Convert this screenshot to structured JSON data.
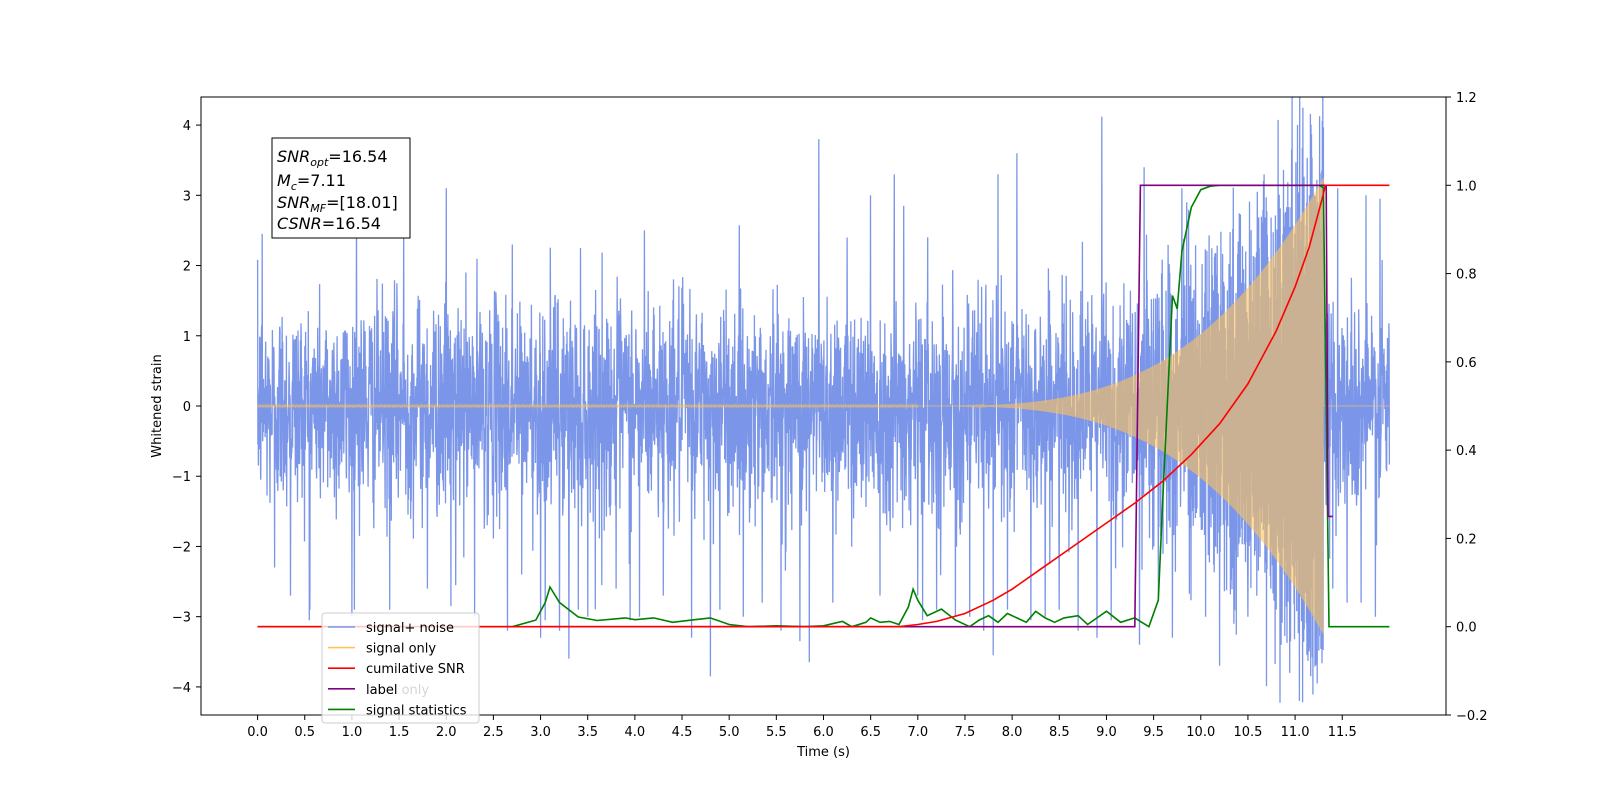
{
  "chart_data": {
    "type": "line",
    "xlabel": "Time (s)",
    "ylabel": "Whitened strain",
    "xlim": [
      -0.6,
      12.6
    ],
    "ylim": [
      -4.4,
      4.4
    ],
    "ylim_right": [
      -0.2,
      1.2
    ],
    "x_ticks": [
      0.0,
      0.5,
      1.0,
      1.5,
      2.0,
      2.5,
      3.0,
      3.5,
      4.0,
      4.5,
      5.0,
      5.5,
      6.0,
      6.5,
      7.0,
      7.5,
      8.0,
      8.5,
      9.0,
      9.5,
      10.0,
      10.5,
      11.0,
      11.5
    ],
    "x_tick_labels": [
      "0.0",
      "0.5",
      "1.0",
      "1.5",
      "2.0",
      "2.5",
      "3.0",
      "3.5",
      "4.0",
      "4.5",
      "5.0",
      "5.5",
      "6.0",
      "6.5",
      "7.0",
      "7.5",
      "8.0",
      "8.5",
      "9.0",
      "9.5",
      "10.0",
      "10.5",
      "11.0",
      "11.5"
    ],
    "y_ticks_left": [
      -4,
      -3,
      -2,
      -1,
      0,
      1,
      2,
      3,
      4
    ],
    "y_tick_labels_left": [
      "−4",
      "−3",
      "−2",
      "−1",
      "0",
      "1",
      "2",
      "3",
      "4"
    ],
    "y_ticks_right": [
      -0.2,
      0.0,
      0.2,
      0.4,
      0.6,
      0.8,
      1.0,
      1.2
    ],
    "y_tick_labels_right": [
      "−0.2",
      "0.0",
      "0.2",
      "0.4",
      "0.6",
      "0.8",
      "1.0",
      "1.2"
    ],
    "info_box": {
      "snr_opt": "SNR",
      "snr_opt_sub": "opt",
      "snr_opt_val": "=16.54",
      "mc": "M",
      "mc_sub": "c",
      "mc_val": "=7.11",
      "snr_mf": "SNR",
      "snr_mf_sub": "MF",
      "snr_mf_val": "=[18.01]",
      "csnr": "CSNR",
      "csnr_val": "=16.54"
    },
    "legend": {
      "placement": "lower-left",
      "entries": [
        {
          "label": "signal+ noise",
          "color": "#7b96e8"
        },
        {
          "label": "signal only",
          "color": "#ffc35a"
        },
        {
          "label": "cumilative SNR",
          "color": "#ff0000"
        },
        {
          "label": "label",
          "color": "#800080",
          "hidden_text": "label only"
        },
        {
          "label": "signal statistics",
          "color": "#008000"
        }
      ]
    },
    "series": [
      {
        "name": "signal+ noise",
        "axis": "left",
        "color": "#7b96e8",
        "noise_sigma": 0.75,
        "t_start": 0.0,
        "t_end": 12.0,
        "spikes": [
          [
            0.05,
            2.45
          ],
          [
            0.18,
            -2.3
          ],
          [
            0.35,
            2.5
          ],
          [
            0.35,
            -2.7
          ],
          [
            0.55,
            -3.05
          ],
          [
            1.0,
            -3.0
          ],
          [
            1.05,
            3.0
          ],
          [
            1.4,
            -2.9
          ],
          [
            1.55,
            2.7
          ],
          [
            1.8,
            -2.6
          ],
          [
            2.0,
            3.1
          ],
          [
            2.05,
            -2.85
          ],
          [
            2.1,
            -2.55
          ],
          [
            2.3,
            -3.0
          ],
          [
            2.65,
            -3.2
          ],
          [
            2.7,
            2.3
          ],
          [
            2.8,
            -2.4
          ],
          [
            3.0,
            -3.3
          ],
          [
            3.05,
            -3.05
          ],
          [
            3.2,
            -3.2
          ],
          [
            3.3,
            -3.6
          ],
          [
            3.4,
            -2.9
          ],
          [
            3.5,
            -3.0
          ],
          [
            3.65,
            -2.55
          ],
          [
            3.8,
            -2.6
          ],
          [
            3.95,
            -3.05
          ],
          [
            4.05,
            -3.0
          ],
          [
            4.1,
            2.5
          ],
          [
            4.3,
            -2.7
          ],
          [
            4.6,
            -3.3
          ],
          [
            4.8,
            -3.85
          ],
          [
            4.9,
            -2.9
          ],
          [
            5.15,
            -3.0
          ],
          [
            5.35,
            -2.8
          ],
          [
            5.55,
            -3.2
          ],
          [
            5.75,
            -3.35
          ],
          [
            5.85,
            -3.65
          ],
          [
            5.95,
            3.8
          ],
          [
            6.1,
            -2.8
          ],
          [
            6.25,
            2.4
          ],
          [
            6.5,
            3.0
          ],
          [
            6.6,
            -2.7
          ],
          [
            6.75,
            3.3
          ],
          [
            6.85,
            2.85
          ],
          [
            7.0,
            -2.7
          ],
          [
            7.05,
            -3.05
          ],
          [
            7.2,
            -2.9
          ],
          [
            7.4,
            -3.0
          ],
          [
            7.55,
            -3.0
          ],
          [
            7.7,
            -3.2
          ],
          [
            7.8,
            -3.55
          ],
          [
            7.85,
            3.3
          ],
          [
            7.95,
            -2.9
          ],
          [
            8.05,
            3.6
          ],
          [
            8.2,
            -3.05
          ],
          [
            8.35,
            -3.0
          ],
          [
            8.5,
            -2.9
          ],
          [
            8.7,
            -3.2
          ],
          [
            8.9,
            -3.3
          ],
          [
            8.95,
            4.12
          ],
          [
            9.05,
            -3.05
          ],
          [
            9.35,
            -3.4
          ],
          [
            9.4,
            3.4
          ],
          [
            9.55,
            -2.7
          ],
          [
            9.7,
            -3.3
          ],
          [
            9.8,
            3.1
          ],
          [
            9.85,
            2.9
          ],
          [
            10.05,
            -3.0
          ],
          [
            10.2,
            -3.7
          ],
          [
            10.35,
            -3.1
          ],
          [
            10.5,
            -3.0
          ],
          [
            10.6,
            3.05
          ],
          [
            10.85,
            -3.4
          ],
          [
            10.95,
            -3.35
          ],
          [
            11.15,
            3.0
          ],
          [
            11.3,
            -3.6
          ],
          [
            11.3,
            3.97
          ],
          [
            11.4,
            -2.6
          ],
          [
            11.45,
            3.1
          ],
          [
            11.55,
            -2.8
          ],
          [
            11.7,
            -2.8
          ],
          [
            11.75,
            3.0
          ],
          [
            11.85,
            -3.0
          ],
          [
            11.9,
            2.95
          ]
        ]
      },
      {
        "name": "signal only",
        "axis": "left",
        "color": "#ffc35a",
        "chirp_start": 7.0,
        "chirp_end": 11.3,
        "chirp_peak": 3.25,
        "merger": 11.3
      },
      {
        "name": "cumilative SNR",
        "axis": "right",
        "color": "#ff0000",
        "x": [
          0.0,
          6.8,
          7.0,
          7.2,
          7.5,
          7.8,
          8.0,
          8.3,
          8.6,
          9.0,
          9.3,
          9.6,
          9.9,
          10.2,
          10.5,
          10.8,
          11.0,
          11.15,
          11.3,
          11.32,
          12.0
        ],
        "y": [
          0.0,
          0.0,
          0.005,
          0.012,
          0.03,
          0.06,
          0.085,
          0.13,
          0.175,
          0.235,
          0.28,
          0.33,
          0.39,
          0.46,
          0.55,
          0.67,
          0.77,
          0.86,
          0.98,
          1.0,
          1.0
        ]
      },
      {
        "name": "label",
        "axis": "right",
        "color": "#800080",
        "x": [
          3.0,
          9.3,
          9.36,
          11.33,
          11.35,
          11.4
        ],
        "y": [
          0.0,
          0.0,
          1.0,
          1.0,
          0.25,
          0.25
        ]
      },
      {
        "name": "signal statistics",
        "axis": "right",
        "color": "#008000",
        "x": [
          0.0,
          2.7,
          2.95,
          3.05,
          3.1,
          3.2,
          3.4,
          3.6,
          3.8,
          3.9,
          4.0,
          4.2,
          4.4,
          4.6,
          4.8,
          5.0,
          5.2,
          5.5,
          5.8,
          6.0,
          6.2,
          6.3,
          6.45,
          6.5,
          6.6,
          6.7,
          6.8,
          6.9,
          6.95,
          7.0,
          7.1,
          7.25,
          7.4,
          7.55,
          7.65,
          7.75,
          7.85,
          7.95,
          8.05,
          8.15,
          8.25,
          8.35,
          8.45,
          8.55,
          8.7,
          8.8,
          8.9,
          9.0,
          9.15,
          9.3,
          9.45,
          9.55,
          9.6,
          9.7,
          9.75,
          9.8,
          9.9,
          10.0,
          10.1,
          10.2,
          11.25,
          11.3,
          11.33,
          11.36,
          11.5,
          12.0
        ],
        "y": [
          0.0,
          0.0,
          0.015,
          0.055,
          0.09,
          0.055,
          0.022,
          0.014,
          0.018,
          0.02,
          0.016,
          0.02,
          0.01,
          0.015,
          0.02,
          0.005,
          0.0,
          0.002,
          0.0,
          0.002,
          0.012,
          0.0,
          0.01,
          0.02,
          0.01,
          0.012,
          0.005,
          0.045,
          0.085,
          0.06,
          0.025,
          0.04,
          0.015,
          0.0,
          0.015,
          0.025,
          0.01,
          0.03,
          0.02,
          0.01,
          0.035,
          0.02,
          0.01,
          0.02,
          0.025,
          0.005,
          0.02,
          0.035,
          0.01,
          0.02,
          0.0,
          0.06,
          0.3,
          0.75,
          0.72,
          0.85,
          0.95,
          0.99,
          0.998,
          1.0,
          1.0,
          0.995,
          0.5,
          0.0,
          0.0,
          0.0
        ]
      }
    ]
  }
}
